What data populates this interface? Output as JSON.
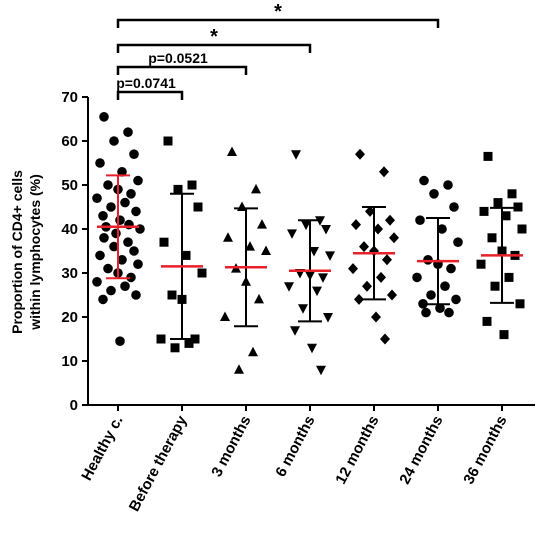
{
  "chart_data": {
    "type": "dot-plot",
    "ylabel_lines": [
      "Proportion of CD4+ cells",
      "within lymphocytes (%)"
    ],
    "ylim": [
      0,
      70
    ],
    "yticks": [
      0,
      10,
      20,
      30,
      40,
      50,
      60,
      70
    ],
    "mean_color": "#e8202a",
    "point_color": "#000000",
    "series": [
      {
        "name": "Healthy c.",
        "marker": "circle",
        "error_color": "#e8202a",
        "mean": 40.5,
        "sd": 11.7,
        "values": [
          65.5,
          62,
          60,
          57,
          55,
          53,
          51,
          50,
          49,
          48,
          47,
          46,
          45,
          44,
          43,
          42,
          41,
          40.5,
          40,
          39,
          38,
          37,
          36,
          35,
          34,
          33,
          32,
          31,
          30,
          29,
          28,
          27,
          26,
          25,
          24,
          14.5
        ]
      },
      {
        "name": "Before therapy",
        "marker": "square",
        "error_color": "#000000",
        "mean": 31.5,
        "sd": 16.5,
        "values": [
          60,
          50,
          49,
          45,
          37,
          34,
          30,
          25,
          24,
          15,
          15,
          14,
          13
        ]
      },
      {
        "name": "3 months",
        "marker": "triangle-up",
        "error_color": "#000000",
        "mean": 31.3,
        "sd": 13.4,
        "values": [
          57.5,
          49,
          45,
          41,
          38,
          36,
          35,
          31,
          28,
          24,
          20,
          12,
          8
        ]
      },
      {
        "name": "6 months",
        "marker": "triangle-down",
        "error_color": "#000000",
        "mean": 30.5,
        "sd": 11.5,
        "values": [
          57,
          42,
          41,
          40,
          39,
          35,
          34,
          30,
          29.5,
          29,
          27,
          26,
          22,
          20,
          17,
          13,
          8
        ]
      },
      {
        "name": "12 months",
        "marker": "diamond",
        "error_color": "#000000",
        "mean": 34.5,
        "sd": 10.5,
        "values": [
          57,
          53,
          44,
          42,
          41,
          40,
          38,
          36,
          35,
          33,
          31,
          29,
          27,
          25,
          24,
          20,
          15
        ]
      },
      {
        "name": "24 months",
        "marker": "circle",
        "error_color": "#000000",
        "mean": 32.7,
        "sd": 9.8,
        "values": [
          51,
          50,
          48,
          45,
          42,
          40,
          37,
          33,
          32,
          31,
          29,
          27,
          25,
          24,
          23,
          22,
          21,
          21
        ]
      },
      {
        "name": "36 months",
        "marker": "square",
        "error_color": "#000000",
        "mean": 34,
        "sd": 10.8,
        "values": [
          56.5,
          48,
          46,
          45,
          44,
          43,
          40,
          38,
          35,
          34,
          32,
          29,
          27,
          23,
          19,
          16
        ]
      }
    ],
    "comparisons": [
      {
        "from": 0,
        "to": 1,
        "label": "p=0.0741"
      },
      {
        "from": 0,
        "to": 2,
        "label": "p=0.0521"
      },
      {
        "from": 0,
        "to": 3,
        "label": "*"
      },
      {
        "from": 0,
        "to": 5,
        "label": "*"
      }
    ]
  }
}
